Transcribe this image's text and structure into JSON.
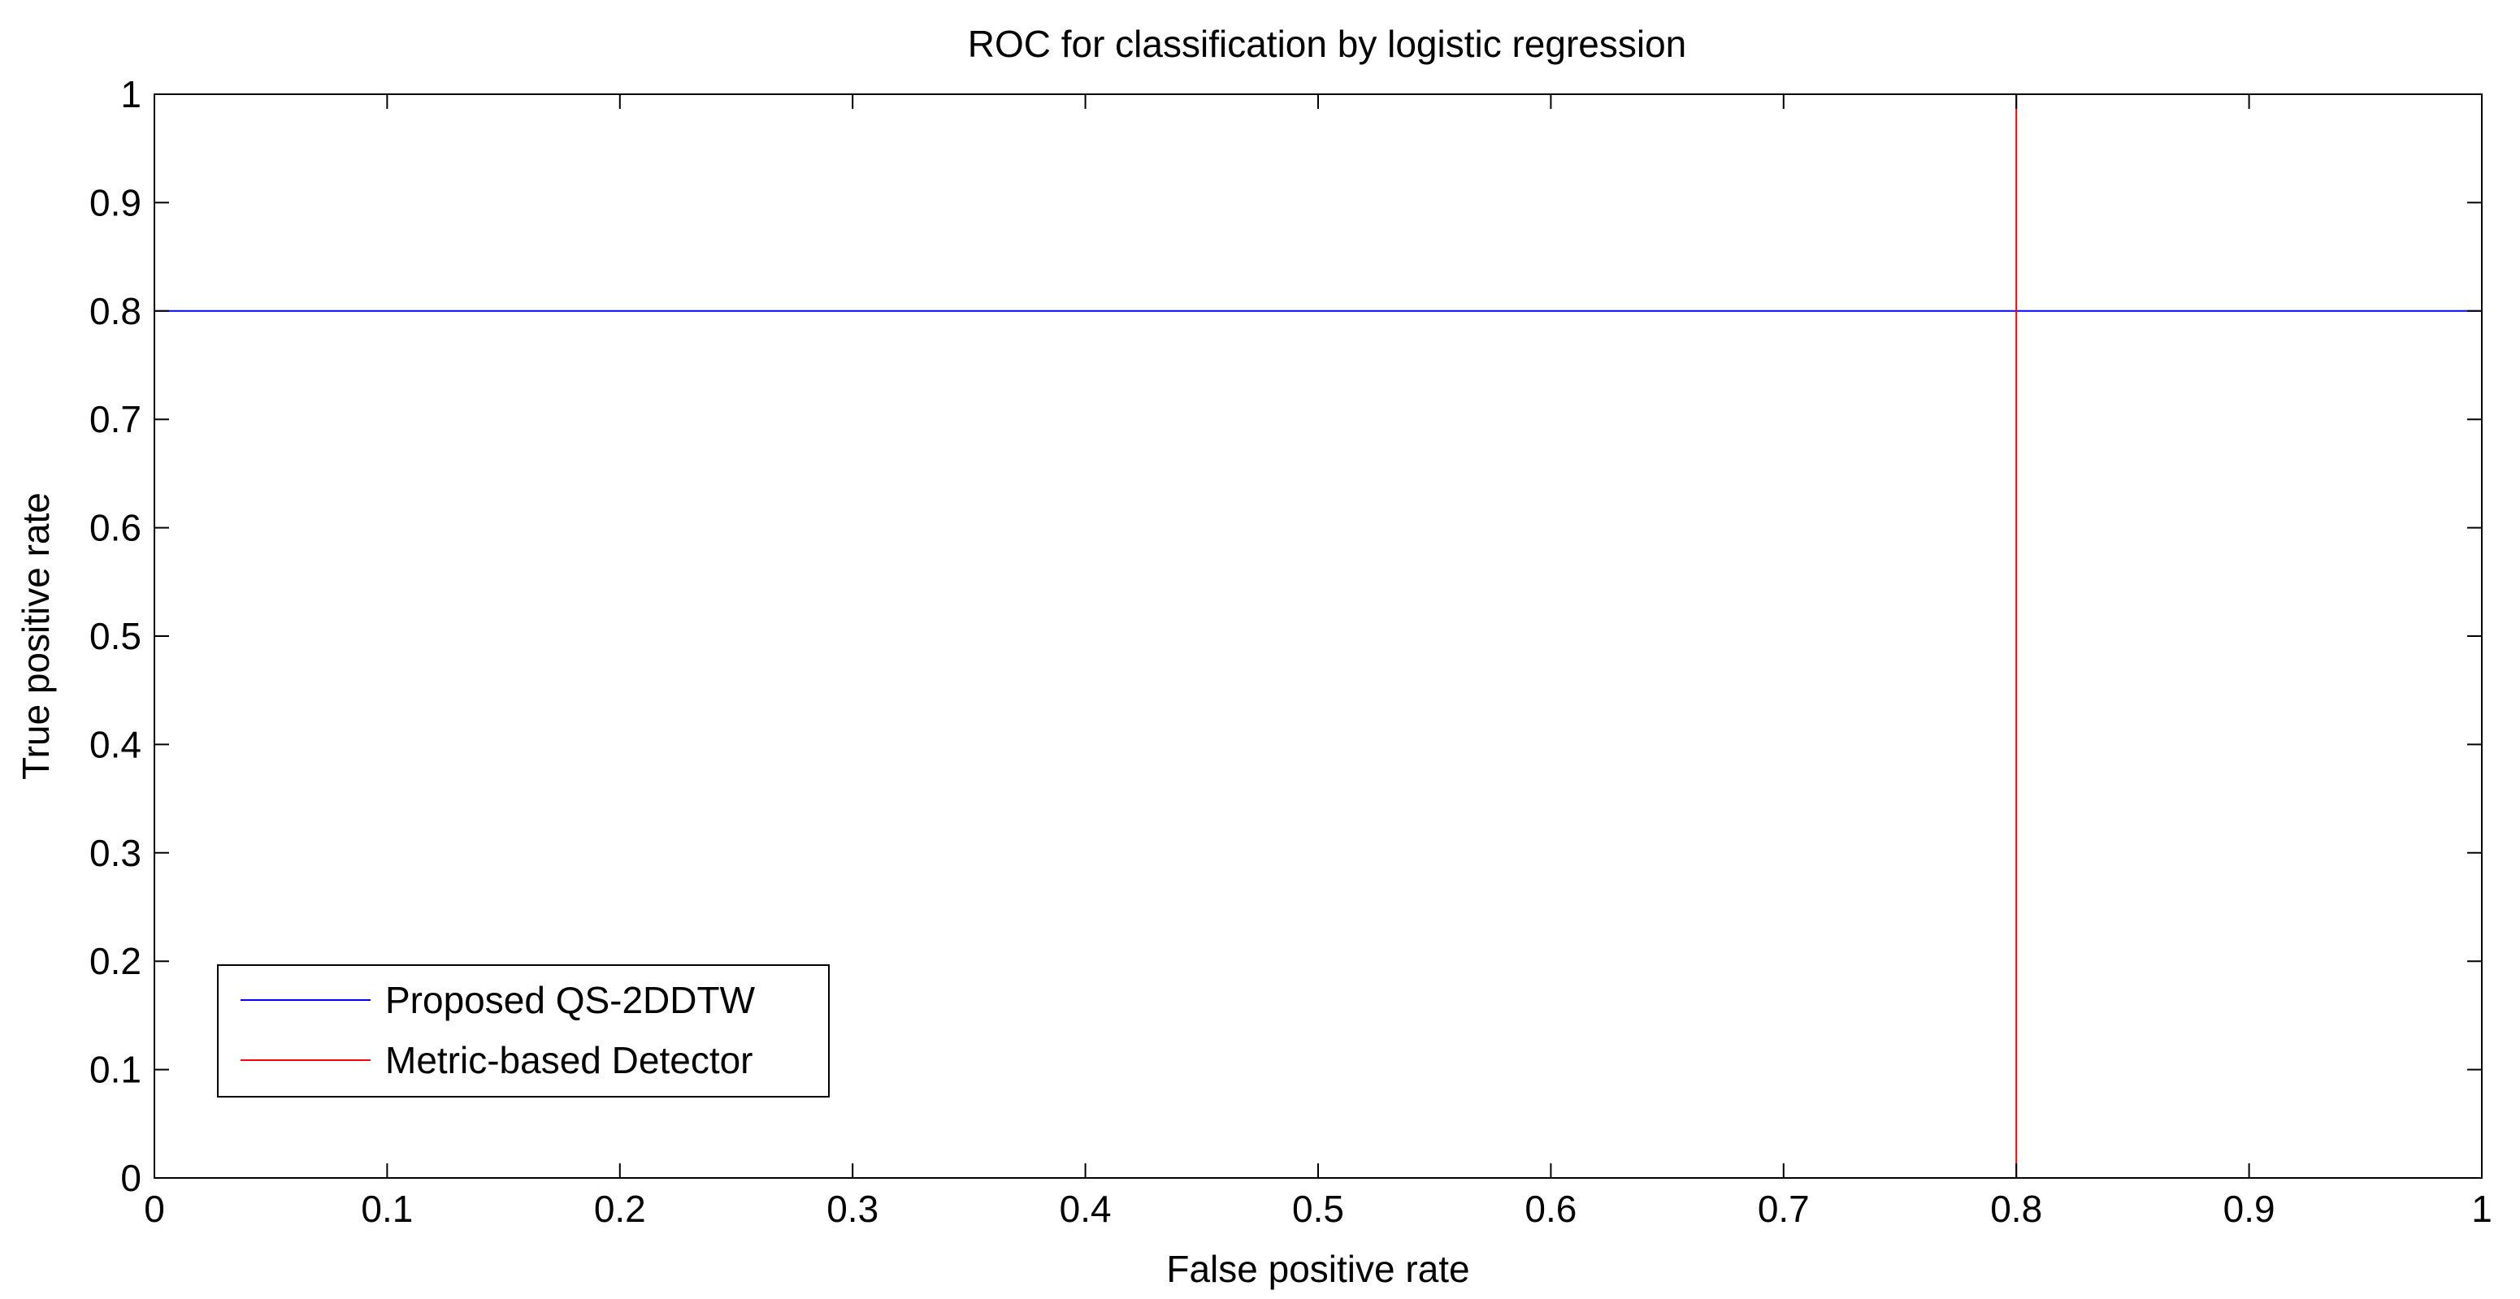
{
  "chart_data": {
    "type": "line",
    "title": "ROC for classification by logistic regression",
    "xlabel": "False positive rate",
    "ylabel": "True positive rate",
    "xlim": [
      0,
      1
    ],
    "ylim": [
      0,
      1
    ],
    "xticks": [
      "0",
      "0.1",
      "0.2",
      "0.3",
      "0.4",
      "0.5",
      "0.6",
      "0.7",
      "0.8",
      "0.9",
      "1"
    ],
    "yticks": [
      "0",
      "0.1",
      "0.2",
      "0.3",
      "0.4",
      "0.5",
      "0.6",
      "0.7",
      "0.8",
      "0.9",
      "1"
    ],
    "grid": false,
    "legend_position": "bottom-left",
    "series": [
      {
        "name": "Proposed QS-2DDTW",
        "color": "#0000ff",
        "x": [
          0,
          0,
          1,
          1
        ],
        "y": [
          0,
          0.8,
          0.8,
          1
        ]
      },
      {
        "name": "Metric-based Detector",
        "color": "#ff0000",
        "x": [
          0,
          0.8,
          0.8,
          1
        ],
        "y": [
          0,
          0,
          1,
          1
        ]
      }
    ]
  }
}
